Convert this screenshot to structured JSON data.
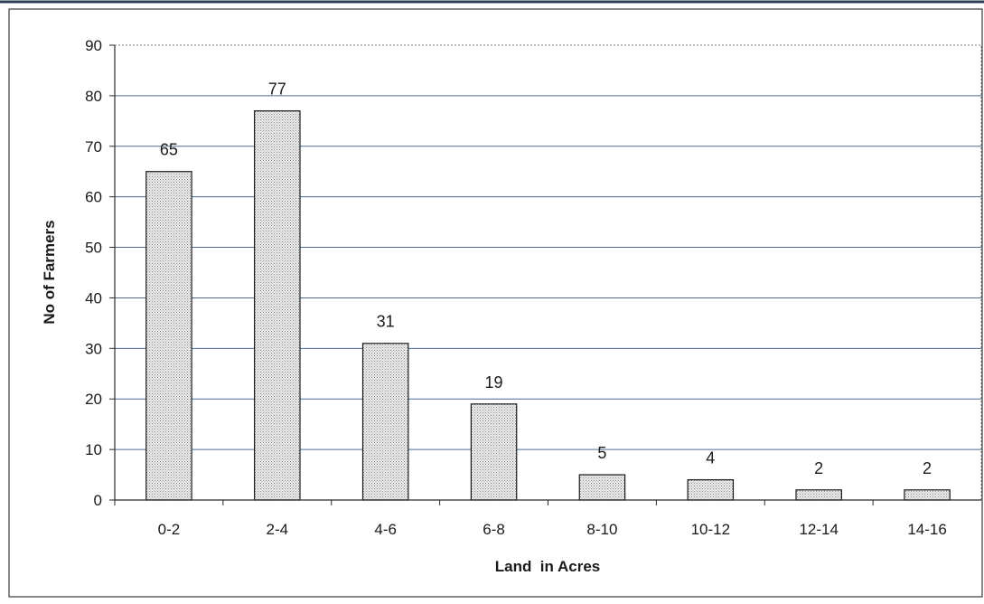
{
  "chart_data": {
    "type": "bar",
    "title": "",
    "xlabel": "Land  in Acres",
    "ylabel": "No of Farmers",
    "categories": [
      "0-2",
      "2-4",
      "4-6",
      "6-8",
      "8-10",
      "10-12",
      "12-14",
      "14-16"
    ],
    "values": [
      65,
      77,
      31,
      19,
      5,
      4,
      2,
      2
    ],
    "data_labels": [
      "65",
      "77",
      "31",
      "19",
      "5",
      "4",
      "2",
      "2"
    ],
    "ylim": [
      0,
      90
    ],
    "yticks": [
      0,
      10,
      20,
      30,
      40,
      50,
      60,
      70,
      80,
      90
    ],
    "ytick_labels": [
      "0",
      "10",
      "20",
      "30",
      "40",
      "50",
      "60",
      "70",
      "80",
      "90"
    ],
    "grid": true,
    "legend": "none",
    "colors": {
      "bar_fill": "#e2e2e2",
      "bar_stroke": "#1a1a1a",
      "grid": "#4a6b8f",
      "axis": "#2b2b2b",
      "background": "#ffffff"
    }
  }
}
